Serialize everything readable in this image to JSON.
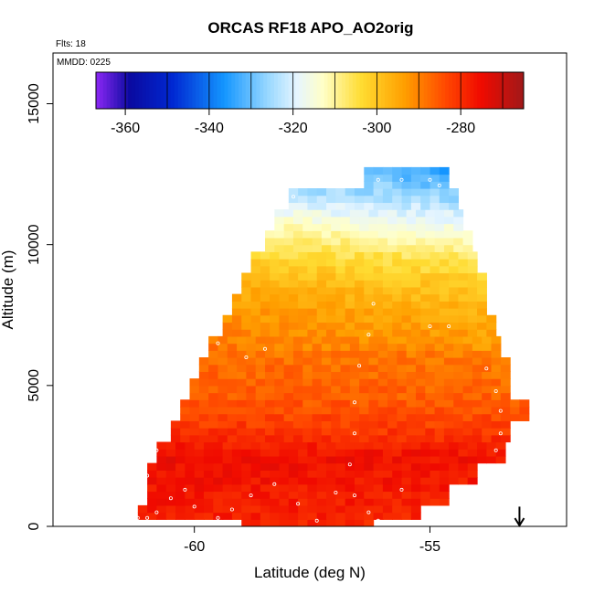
{
  "chart_data": {
    "type": "heatmap",
    "title": "ORCAS RF18 APO_AO2orig",
    "flights_label": "Flts: 18",
    "date_label": "MMDD: 0225",
    "xlabel": "Latitude (deg N)",
    "ylabel": "Altitude (m)",
    "xlim": [
      -63,
      -52.1
    ],
    "ylim": [
      0,
      16800
    ],
    "x_ticks": [
      -60,
      -55
    ],
    "y_ticks": [
      0,
      5000,
      10000,
      15000
    ],
    "x_tick_labels": [
      "-60",
      "-55"
    ],
    "y_tick_labels": [
      "0",
      "5000",
      "10000",
      "15000"
    ],
    "colorbar": {
      "min": -367,
      "max": -265,
      "ticks": [
        -360,
        -340,
        -320,
        -300,
        -280
      ],
      "tick_labels": [
        "-360",
        "-340",
        "-320",
        "-300",
        "-280"
      ]
    },
    "profile_rows": [
      {
        "alt": 12300,
        "lat_min": -56.4,
        "lat_max": -54.7
      },
      {
        "alt": 11750,
        "lat_min": -58.0,
        "lat_max": -54.5
      },
      {
        "alt": 11000,
        "lat_min": -58.3,
        "lat_max": -54.3
      },
      {
        "alt": 10250,
        "lat_min": -58.5,
        "lat_max": -54.2
      },
      {
        "alt": 9500,
        "lat_min": -58.8,
        "lat_max": -54.1
      },
      {
        "alt": 8750,
        "lat_min": -59.0,
        "lat_max": -53.9
      },
      {
        "alt": 8000,
        "lat_min": -59.2,
        "lat_max": -53.8
      },
      {
        "alt": 7250,
        "lat_min": -59.4,
        "lat_max": -53.7
      },
      {
        "alt": 6500,
        "lat_min": -59.7,
        "lat_max": -53.5
      },
      {
        "alt": 5750,
        "lat_min": -59.9,
        "lat_max": -53.4
      },
      {
        "alt": 5000,
        "lat_min": -60.1,
        "lat_max": -53.4
      },
      {
        "alt": 4250,
        "lat_min": -60.3,
        "lat_max": -53.0
      },
      {
        "alt": 3500,
        "lat_min": -60.5,
        "lat_max": -53.4
      },
      {
        "alt": 2750,
        "lat_min": -60.8,
        "lat_max": -53.4
      },
      {
        "alt": 2000,
        "lat_min": -61.0,
        "lat_max": -54.1
      },
      {
        "alt": 1250,
        "lat_min": -61.0,
        "lat_max": -54.7
      },
      {
        "alt": 500,
        "lat_min": -61.2,
        "lat_max": -55.2
      },
      {
        "alt": 0,
        "lat_min": -59.0,
        "lat_max": -56.2
      }
    ],
    "value_profile": [
      {
        "alt": 0,
        "value": -278
      },
      {
        "alt": 2500,
        "value": -275
      },
      {
        "alt": 3500,
        "value": -281
      },
      {
        "alt": 4500,
        "value": -285
      },
      {
        "alt": 5500,
        "value": -287
      },
      {
        "alt": 6500,
        "value": -289
      },
      {
        "alt": 7500,
        "value": -292
      },
      {
        "alt": 8500,
        "value": -296
      },
      {
        "alt": 9500,
        "value": -302
      },
      {
        "alt": 10500,
        "value": -311
      },
      {
        "alt": 11500,
        "value": -320
      },
      {
        "alt": 12500,
        "value": -330
      }
    ],
    "sample_points": [
      {
        "lat": -61.2,
        "alt": 300
      },
      {
        "lat": -61.0,
        "alt": 300
      },
      {
        "lat": -60.8,
        "alt": 500
      },
      {
        "lat": -60.5,
        "alt": 1000
      },
      {
        "lat": -60.2,
        "alt": 1300
      },
      {
        "lat": -60.0,
        "alt": 700
      },
      {
        "lat": -59.5,
        "alt": 300
      },
      {
        "lat": -59.2,
        "alt": 600
      },
      {
        "lat": -58.8,
        "alt": 1100
      },
      {
        "lat": -58.3,
        "alt": 1500
      },
      {
        "lat": -57.8,
        "alt": 800
      },
      {
        "lat": -57.4,
        "alt": 200
      },
      {
        "lat": -57.0,
        "alt": 1200
      },
      {
        "lat": -56.6,
        "alt": 1100
      },
      {
        "lat": -56.3,
        "alt": 500
      },
      {
        "lat": -56.1,
        "alt": 200
      },
      {
        "lat": -55.6,
        "alt": 1300
      },
      {
        "lat": -61.0,
        "alt": 1800
      },
      {
        "lat": -60.8,
        "alt": 2700
      },
      {
        "lat": -60.6,
        "alt": 3800
      },
      {
        "lat": -60.4,
        "alt": 4300
      },
      {
        "lat": -60.2,
        "alt": 5300
      },
      {
        "lat": -60.0,
        "alt": 6600
      },
      {
        "lat": -59.5,
        "alt": 6500
      },
      {
        "lat": -58.9,
        "alt": 6000
      },
      {
        "lat": -58.5,
        "alt": 6300
      },
      {
        "lat": -56.3,
        "alt": 6800
      },
      {
        "lat": -55.0,
        "alt": 7100
      },
      {
        "lat": -54.6,
        "alt": 7100
      },
      {
        "lat": -53.8,
        "alt": 5600
      },
      {
        "lat": -53.6,
        "alt": 4800
      },
      {
        "lat": -53.5,
        "alt": 4100
      },
      {
        "lat": -53.5,
        "alt": 3300
      },
      {
        "lat": -53.6,
        "alt": 2700
      },
      {
        "lat": -56.2,
        "alt": 7900
      },
      {
        "lat": -56.6,
        "alt": 4400
      },
      {
        "lat": -56.6,
        "alt": 3300
      },
      {
        "lat": -56.5,
        "alt": 5700
      },
      {
        "lat": -57.9,
        "alt": 11700
      },
      {
        "lat": -56.1,
        "alt": 12300
      },
      {
        "lat": -55.6,
        "alt": 12300
      },
      {
        "lat": -55.0,
        "alt": 12300
      },
      {
        "lat": -54.8,
        "alt": 12100
      },
      {
        "lat": -56.7,
        "alt": 2200
      }
    ],
    "arrow_marker": {
      "lat": -53.1,
      "alt_top": 700,
      "alt_bottom": 0
    }
  }
}
